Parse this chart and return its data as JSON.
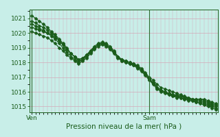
{
  "title": "",
  "xlabel": "Pression niveau de la mer( hPa )",
  "ylabel": "",
  "bg_color": "#c8eee8",
  "grid_color": "#d4a8b8",
  "line_color": "#1a5c1a",
  "marker_color": "#1a5c1a",
  "ylim": [
    1014.6,
    1021.6
  ],
  "yticks": [
    1015,
    1016,
    1017,
    1018,
    1019,
    1020,
    1021
  ],
  "series": [
    {
      "x": [
        0,
        1,
        2,
        3,
        4,
        5,
        6,
        7,
        8,
        9,
        10,
        11,
        12,
        13,
        14,
        15,
        16,
        17,
        18,
        19,
        20,
        21,
        22,
        23,
        24,
        25,
        26,
        27,
        28,
        29,
        30,
        31,
        32,
        33,
        34,
        35,
        36,
        37,
        38,
        39,
        40,
        41,
        42,
        43,
        44,
        45,
        46,
        47
      ],
      "y": [
        1020.4,
        1020.3,
        1020.2,
        1020.1,
        1020.0,
        1019.9,
        1019.7,
        1019.5,
        1019.2,
        1018.9,
        1018.6,
        1018.4,
        1018.2,
        1018.3,
        1018.5,
        1018.8,
        1019.0,
        1019.2,
        1019.3,
        1019.2,
        1019.0,
        1018.7,
        1018.4,
        1018.2,
        1018.1,
        1018.0,
        1017.9,
        1017.8,
        1017.6,
        1017.3,
        1017.0,
        1016.8,
        1016.5,
        1016.3,
        1016.2,
        1016.1,
        1016.0,
        1015.9,
        1015.8,
        1015.7,
        1015.6,
        1015.5,
        1015.5,
        1015.5,
        1015.5,
        1015.4,
        1015.3,
        1015.2
      ]
    },
    {
      "x": [
        0,
        1,
        2,
        3,
        4,
        5,
        6,
        7,
        8,
        9,
        10,
        11,
        12,
        13,
        14,
        15,
        16,
        17,
        18,
        19,
        20,
        21,
        22,
        23,
        24,
        25,
        26,
        27,
        28,
        29,
        30,
        31,
        32,
        33,
        34,
        35,
        36,
        37,
        38,
        39,
        40,
        41,
        42,
        43,
        44,
        45,
        46,
        47
      ],
      "y": [
        1020.8,
        1020.7,
        1020.5,
        1020.4,
        1020.2,
        1020.0,
        1019.8,
        1019.5,
        1019.2,
        1018.9,
        1018.6,
        1018.4,
        1018.2,
        1018.3,
        1018.5,
        1018.8,
        1019.1,
        1019.3,
        1019.4,
        1019.3,
        1019.1,
        1018.8,
        1018.4,
        1018.2,
        1018.1,
        1018.0,
        1017.9,
        1017.7,
        1017.5,
        1017.2,
        1016.9,
        1016.6,
        1016.3,
        1016.1,
        1016.0,
        1015.9,
        1015.8,
        1015.8,
        1015.7,
        1015.6,
        1015.6,
        1015.5,
        1015.5,
        1015.5,
        1015.4,
        1015.3,
        1015.2,
        1015.1
      ]
    },
    {
      "x": [
        0,
        1,
        2,
        3,
        4,
        5,
        6,
        7,
        8,
        9,
        10,
        11,
        12,
        13,
        14,
        15,
        16,
        17,
        18,
        19,
        20,
        21,
        22,
        23,
        24,
        25,
        26,
        27,
        28,
        29,
        30,
        31,
        32,
        33,
        34,
        35,
        36,
        37,
        38,
        39,
        40,
        41,
        42,
        43,
        44,
        45,
        46,
        47
      ],
      "y": [
        1020.1,
        1020.0,
        1019.9,
        1019.8,
        1019.7,
        1019.5,
        1019.3,
        1019.0,
        1018.8,
        1018.5,
        1018.3,
        1018.1,
        1017.9,
        1018.1,
        1018.3,
        1018.6,
        1018.9,
        1019.1,
        1019.2,
        1019.1,
        1018.9,
        1018.6,
        1018.3,
        1018.1,
        1018.0,
        1017.9,
        1017.8,
        1017.6,
        1017.4,
        1017.1,
        1016.8,
        1016.5,
        1016.2,
        1016.0,
        1015.9,
        1015.8,
        1015.7,
        1015.7,
        1015.6,
        1015.5,
        1015.5,
        1015.4,
        1015.3,
        1015.2,
        1015.1,
        1015.0,
        1014.9,
        1014.8
      ]
    },
    {
      "x": [
        0,
        1,
        2,
        3,
        4,
        5,
        6,
        7,
        8,
        9,
        10,
        11,
        12,
        13,
        14,
        15,
        16,
        17,
        18,
        19,
        20,
        21,
        22,
        23,
        24,
        25,
        26,
        27,
        28,
        29,
        30,
        31,
        32,
        33,
        34,
        35,
        36,
        37,
        38,
        39,
        40,
        41,
        42,
        43,
        44,
        45,
        46,
        47
      ],
      "y": [
        1021.2,
        1021.0,
        1020.8,
        1020.6,
        1020.4,
        1020.1,
        1019.9,
        1019.6,
        1019.3,
        1019.0,
        1018.6,
        1018.4,
        1018.1,
        1018.2,
        1018.5,
        1018.7,
        1019.0,
        1019.2,
        1019.3,
        1019.2,
        1019.0,
        1018.7,
        1018.4,
        1018.2,
        1018.1,
        1018.0,
        1017.9,
        1017.7,
        1017.5,
        1017.2,
        1016.9,
        1016.6,
        1016.3,
        1016.1,
        1016.0,
        1015.8,
        1015.7,
        1015.6,
        1015.6,
        1015.5,
        1015.4,
        1015.4,
        1015.3,
        1015.3,
        1015.2,
        1015.1,
        1015.0,
        1014.9
      ]
    },
    {
      "x": [
        0,
        1,
        2,
        3,
        4,
        5,
        6,
        7,
        8,
        9,
        10,
        11,
        12,
        13,
        14,
        15,
        16,
        17,
        18,
        19,
        20,
        21,
        22,
        23,
        24,
        25,
        26,
        27,
        28,
        29,
        30,
        31,
        32,
        33,
        34,
        35,
        36,
        37,
        38,
        39,
        40,
        41,
        42,
        43,
        44,
        45,
        46,
        47
      ],
      "y": [
        1020.6,
        1020.5,
        1020.3,
        1020.2,
        1020.0,
        1019.8,
        1019.6,
        1019.3,
        1019.0,
        1018.7,
        1018.4,
        1018.2,
        1018.0,
        1018.2,
        1018.4,
        1018.7,
        1019.0,
        1019.2,
        1019.3,
        1019.2,
        1019.0,
        1018.7,
        1018.4,
        1018.1,
        1018.0,
        1017.9,
        1017.8,
        1017.7,
        1017.5,
        1017.2,
        1016.9,
        1016.6,
        1016.3,
        1016.1,
        1016.0,
        1015.9,
        1015.8,
        1015.7,
        1015.7,
        1015.6,
        1015.5,
        1015.5,
        1015.4,
        1015.4,
        1015.3,
        1015.2,
        1015.1,
        1015.0
      ]
    }
  ],
  "ven_x": 0,
  "sam_x": 30,
  "xlim": [
    -0.5,
    47.5
  ],
  "vline_color": "#2d6a2d",
  "tick_color": "#1a5c1a",
  "tick_fontsize": 6.5,
  "xlabel_fontsize": 7.5,
  "marker_size": 2.5,
  "linewidth": 0.85
}
